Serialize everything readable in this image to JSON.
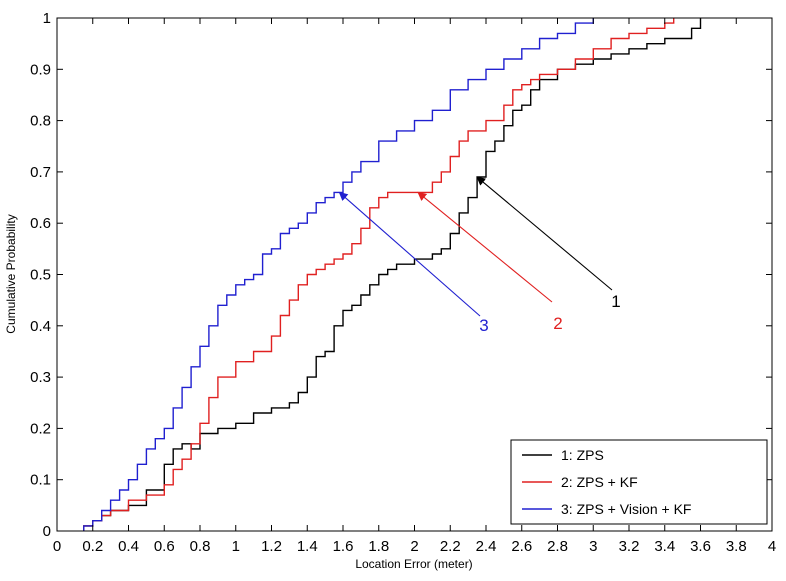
{
  "chart_data": {
    "type": "line",
    "xlabel": "Location Error (meter)",
    "ylabel": "Cumulative Probability",
    "xlim": [
      0,
      4
    ],
    "ylim": [
      0,
      1
    ],
    "xticks": [
      "0",
      "0.2",
      "0.4",
      "0.6",
      "0.8",
      "1",
      "1.2",
      "1.4",
      "1.6",
      "1.8",
      "2",
      "2.2",
      "2.4",
      "2.6",
      "2.8",
      "3",
      "3.2",
      "3.4",
      "3.6",
      "3.8",
      "4"
    ],
    "yticks": [
      "0",
      "0.1",
      "0.2",
      "0.3",
      "0.4",
      "0.5",
      "0.6",
      "0.7",
      "0.8",
      "0.9",
      "1"
    ],
    "grid": false,
    "legend_position": "bottom-right",
    "series": [
      {
        "name": "1: ZPS",
        "color": "#000000",
        "x": [
          0.15,
          0.2,
          0.25,
          0.3,
          0.4,
          0.5,
          0.6,
          0.65,
          0.7,
          0.75,
          0.8,
          0.9,
          1.0,
          1.1,
          1.2,
          1.3,
          1.35,
          1.4,
          1.45,
          1.5,
          1.55,
          1.6,
          1.65,
          1.7,
          1.75,
          1.8,
          1.85,
          1.9,
          2.0,
          2.1,
          2.15,
          2.2,
          2.25,
          2.3,
          2.35,
          2.4,
          2.45,
          2.5,
          2.55,
          2.6,
          2.65,
          2.7,
          2.8,
          2.9,
          3.0,
          3.1,
          3.2,
          3.3,
          3.4,
          3.5,
          3.55,
          3.6
        ],
        "y": [
          0.01,
          0.02,
          0.03,
          0.04,
          0.05,
          0.08,
          0.13,
          0.16,
          0.17,
          0.16,
          0.19,
          0.2,
          0.21,
          0.23,
          0.24,
          0.25,
          0.27,
          0.3,
          0.34,
          0.35,
          0.4,
          0.43,
          0.44,
          0.46,
          0.48,
          0.5,
          0.51,
          0.52,
          0.53,
          0.54,
          0.55,
          0.58,
          0.62,
          0.65,
          0.69,
          0.74,
          0.76,
          0.79,
          0.82,
          0.83,
          0.86,
          0.88,
          0.9,
          0.91,
          0.92,
          0.93,
          0.94,
          0.95,
          0.96,
          0.96,
          0.98,
          1.0
        ]
      },
      {
        "name": "2: ZPS + KF",
        "color": "#e02020",
        "x": [
          0.15,
          0.2,
          0.25,
          0.3,
          0.4,
          0.5,
          0.6,
          0.65,
          0.7,
          0.75,
          0.8,
          0.85,
          0.9,
          1.0,
          1.1,
          1.2,
          1.25,
          1.3,
          1.35,
          1.4,
          1.45,
          1.5,
          1.55,
          1.6,
          1.65,
          1.7,
          1.75,
          1.8,
          1.85,
          1.9,
          2.0,
          2.1,
          2.15,
          2.2,
          2.25,
          2.3,
          2.4,
          2.5,
          2.55,
          2.6,
          2.65,
          2.7,
          2.8,
          2.9,
          3.0,
          3.1,
          3.2,
          3.3,
          3.4,
          3.45
        ],
        "y": [
          0.01,
          0.02,
          0.03,
          0.04,
          0.06,
          0.07,
          0.09,
          0.12,
          0.14,
          0.17,
          0.21,
          0.26,
          0.3,
          0.33,
          0.35,
          0.38,
          0.42,
          0.45,
          0.48,
          0.5,
          0.51,
          0.52,
          0.53,
          0.54,
          0.56,
          0.59,
          0.63,
          0.65,
          0.66,
          0.66,
          0.66,
          0.68,
          0.7,
          0.73,
          0.76,
          0.78,
          0.8,
          0.83,
          0.86,
          0.87,
          0.88,
          0.89,
          0.9,
          0.92,
          0.94,
          0.96,
          0.97,
          0.98,
          0.99,
          1.0
        ]
      },
      {
        "name": "3: ZPS + Vision + KF",
        "color": "#2020d0",
        "x": [
          0.15,
          0.2,
          0.25,
          0.3,
          0.35,
          0.4,
          0.45,
          0.5,
          0.55,
          0.6,
          0.65,
          0.7,
          0.75,
          0.8,
          0.85,
          0.9,
          0.95,
          1.0,
          1.05,
          1.1,
          1.15,
          1.2,
          1.25,
          1.3,
          1.35,
          1.4,
          1.45,
          1.5,
          1.55,
          1.6,
          1.65,
          1.7,
          1.8,
          1.9,
          2.0,
          2.1,
          2.2,
          2.3,
          2.4,
          2.5,
          2.6,
          2.7,
          2.8,
          2.9,
          3.0
        ],
        "y": [
          0.01,
          0.02,
          0.04,
          0.06,
          0.08,
          0.1,
          0.13,
          0.16,
          0.18,
          0.2,
          0.24,
          0.28,
          0.32,
          0.36,
          0.4,
          0.44,
          0.46,
          0.48,
          0.49,
          0.5,
          0.54,
          0.55,
          0.58,
          0.59,
          0.6,
          0.62,
          0.64,
          0.65,
          0.66,
          0.68,
          0.7,
          0.72,
          0.76,
          0.78,
          0.8,
          0.82,
          0.86,
          0.88,
          0.9,
          0.92,
          0.94,
          0.96,
          0.97,
          0.99,
          1.0
        ]
      }
    ],
    "annotations": [
      {
        "label": "1",
        "color": "#000000",
        "target_x": 2.35,
        "target_y": 0.69
      },
      {
        "label": "2",
        "color": "#e02020",
        "target_x": 2.02,
        "target_y": 0.66
      },
      {
        "label": "3",
        "color": "#2020d0",
        "target_x": 1.58,
        "target_y": 0.66
      }
    ]
  }
}
